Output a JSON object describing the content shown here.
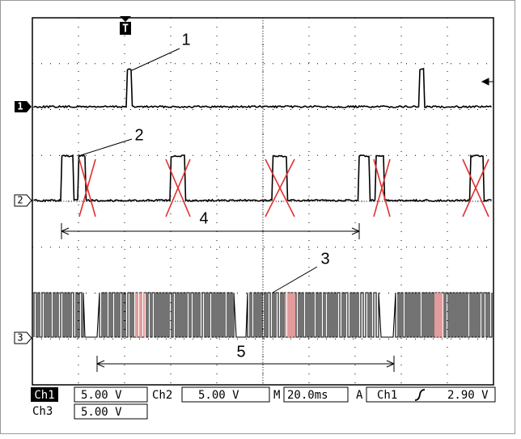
{
  "trigger_marker": "T",
  "channel_markers": [
    "1",
    "2",
    "3"
  ],
  "annotations": [
    "1",
    "2",
    "3",
    "4",
    "5"
  ],
  "status": {
    "ch1_label": "Ch1",
    "ch1_scale": "5.00 V",
    "ch2_label": "Ch2",
    "ch2_scale": "5.00 V",
    "time_label": "M",
    "time_scale": "20.0ms",
    "trigger_label": "A",
    "trigger_source": "Ch1",
    "trigger_level": "2.90 V",
    "ch3_label": "Ch3",
    "ch3_scale": "5.00 V"
  }
}
